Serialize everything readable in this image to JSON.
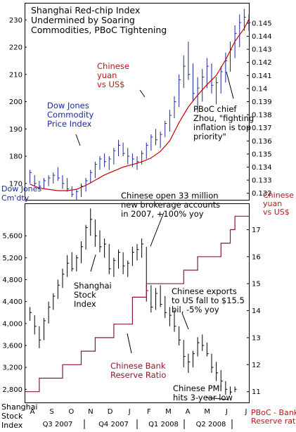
{
  "chart_data": [
    {
      "type": "line",
      "title": "Shanghai Red-chip Index\nUndermined by Soaring\nCommodities, PBoC Tightening",
      "x_labels": [
        "A",
        "S",
        "O",
        "N",
        "D",
        "J",
        "F",
        "M",
        "A",
        "M",
        "J",
        "J"
      ],
      "left_axis": {
        "ticks": [
          "170",
          "180",
          "190",
          "200",
          "210",
          "220",
          "230"
        ],
        "ylim": [
          164,
          236
        ],
        "label": "Dow Jones\nCm'dty"
      },
      "right_axis": {
        "ticks": [
          "0.132",
          "0.133",
          "0.134",
          "0.135",
          "0.136",
          "0.137",
          "0.138",
          "0.139",
          "0.14",
          "0.141",
          "0.142",
          "0.143",
          "0.144",
          "0.145"
        ],
        "ylim": [
          0.1315,
          0.1465
        ],
        "label": "Chinese\nyuan\nvs US$"
      },
      "series": [
        {
          "name": "Dow Jones Commodity Price Index",
          "style": "ohlc",
          "color": "#1a2a99",
          "bars": [
            [
              1,
              175,
              170,
              174
            ],
            [
              2,
              173,
              169,
              170
            ],
            [
              3,
              171,
              168,
              169
            ],
            [
              4,
              172,
              168,
              171
            ],
            [
              5,
              173,
              169,
              172
            ],
            [
              6,
              174,
              170,
              173
            ],
            [
              7,
              176,
              171,
              172
            ],
            [
              8,
              173,
              168,
              170
            ],
            [
              9,
              172,
              167,
              168
            ],
            [
              10,
              169,
              165,
              166
            ],
            [
              11,
              168,
              164,
              167
            ],
            [
              12,
              170,
              165,
              169
            ],
            [
              13,
              172,
              167,
              171
            ],
            [
              14,
              175,
              170,
              174
            ],
            [
              15,
              178,
              172,
              177
            ],
            [
              16,
              180,
              175,
              179
            ],
            [
              17,
              181,
              176,
              178
            ],
            [
              18,
              180,
              175,
              179
            ],
            [
              19,
              183,
              177,
              182
            ],
            [
              20,
              186,
              180,
              184
            ],
            [
              21,
              185,
              180,
              181
            ],
            [
              22,
              183,
              177,
              180
            ],
            [
              23,
              181,
              176,
              179
            ],
            [
              24,
              180,
              175,
              178
            ],
            [
              25,
              182,
              177,
              181
            ],
            [
              26,
              185,
              179,
              184
            ],
            [
              27,
              188,
              182,
              187
            ],
            [
              28,
              190,
              184,
              186
            ],
            [
              29,
              189,
              183,
              188
            ],
            [
              30,
              193,
              187,
              192
            ],
            [
              31,
              197,
              189,
              195
            ],
            [
              32,
              202,
              194,
              200
            ],
            [
              33,
              210,
              198,
              208
            ],
            [
              34,
              217,
              205,
              213
            ],
            [
              35,
              222,
              208,
              210
            ],
            [
              36,
              214,
              200,
              203
            ],
            [
              37,
              209,
              196,
              205
            ],
            [
              38,
              212,
              200,
              209
            ],
            [
              39,
              216,
              205,
              213
            ],
            [
              40,
              214,
              203,
              206
            ],
            [
              41,
              209,
              199,
              207
            ],
            [
              42,
              213,
              203,
              211
            ],
            [
              43,
              218,
              207,
              215
            ],
            [
              44,
              222,
              211,
              219
            ],
            [
              45,
              228,
              216,
              225
            ],
            [
              46,
              232,
              220,
              229
            ],
            [
              47,
              234,
              226,
              231
            ],
            [
              48,
              232,
              226,
              229
            ]
          ]
        },
        {
          "name": "Chinese yuan vs US$",
          "style": "line",
          "color": "#cc0000",
          "values": [
            [
              1,
              0.1327
            ],
            [
              3,
              0.1324
            ],
            [
              5,
              0.1323
            ],
            [
              7,
              0.1322
            ],
            [
              9,
              0.1322
            ],
            [
              11,
              0.1323
            ],
            [
              13,
              0.1326
            ],
            [
              15,
              0.133
            ],
            [
              17,
              0.1334
            ],
            [
              19,
              0.1337
            ],
            [
              21,
              0.134
            ],
            [
              23,
              0.1342
            ],
            [
              25,
              0.1344
            ],
            [
              27,
              0.1347
            ],
            [
              29,
              0.1352
            ],
            [
              31,
              0.136
            ],
            [
              33,
              0.1374
            ],
            [
              35,
              0.1386
            ],
            [
              37,
              0.1395
            ],
            [
              39,
              0.1403
            ],
            [
              41,
              0.141
            ],
            [
              43,
              0.1422
            ],
            [
              45,
              0.1436
            ],
            [
              47,
              0.1446
            ],
            [
              48,
              0.1453
            ]
          ]
        }
      ],
      "annotations": [
        {
          "text": "Chinese\nyuan\nvs US$",
          "color": "#b01a1a"
        },
        {
          "text": "Dow Jones\nCommodity\nPrice Index",
          "color": "#1a2a99"
        },
        {
          "text": "PBoC chief\nZhou, \"fighting\ninflation is top\npriority\"",
          "color": "#000000"
        }
      ]
    },
    {
      "type": "line",
      "x_labels": [
        "A",
        "S",
        "O",
        "N",
        "D",
        "J",
        "F",
        "M",
        "A",
        "M",
        "J",
        "J"
      ],
      "period_labels": [
        "Q3 2007",
        "Q4 2007",
        "Q1 2008",
        "Q2 2008"
      ],
      "left_axis": {
        "ticks": [
          "2,800",
          "3,200",
          "3,600",
          "4,000",
          "4,400",
          "4,800",
          "5,200",
          "5,600"
        ],
        "ylim": [
          2560,
          6180
        ],
        "label": "Shanghai\nStock\nIndex"
      },
      "right_axis": {
        "ticks": [
          "11",
          "12",
          "13",
          "14",
          "15",
          "16",
          "17"
        ],
        "ylim": [
          10.6,
          17.95
        ],
        "label": "PBoC - Bank\nReserve ratio"
      },
      "series": [
        {
          "name": "Shanghai Stock Index",
          "style": "ohlc",
          "color": "#000000",
          "bars": [
            [
              1,
              4300,
              4050,
              4200
            ],
            [
              2,
              4150,
              3800,
              3950
            ],
            [
              3,
              3950,
              3550,
              3700
            ],
            [
              4,
              4100,
              3700,
              4050
            ],
            [
              5,
              4400,
              4000,
              4300
            ],
            [
              6,
              4550,
              4250,
              4500
            ],
            [
              7,
              4800,
              4450,
              4700
            ],
            [
              8,
              5000,
              4650,
              4900
            ],
            [
              9,
              5250,
              4850,
              5100
            ],
            [
              10,
              5300,
              4950,
              5000
            ],
            [
              11,
              5250,
              4950,
              5200
            ],
            [
              12,
              5500,
              5100,
              5400
            ],
            [
              13,
              5800,
              5350,
              5750
            ],
            [
              14,
              6100,
              5600,
              5900
            ],
            [
              15,
              5900,
              5400,
              5600
            ],
            [
              16,
              5700,
              5300,
              5400
            ],
            [
              17,
              5550,
              5200,
              5450
            ],
            [
              18,
              5450,
              4900,
              5000
            ],
            [
              19,
              5200,
              4850,
              5150
            ],
            [
              20,
              5350,
              5000,
              5300
            ],
            [
              21,
              5300,
              4900,
              5050
            ],
            [
              22,
              5150,
              4850,
              5100
            ],
            [
              23,
              5400,
              5050,
              5300
            ],
            [
              24,
              5450,
              5150,
              5350
            ],
            [
              25,
              5550,
              5200,
              5450
            ],
            [
              26,
              5400,
              4400,
              4600
            ],
            [
              27,
              4700,
              4200,
              4300
            ],
            [
              28,
              4650,
              4250,
              4550
            ],
            [
              29,
              4700,
              4300,
              4350
            ],
            [
              30,
              4500,
              4100,
              4200
            ],
            [
              31,
              4300,
              3950,
              4150
            ],
            [
              32,
              4250,
              3850,
              3950
            ],
            [
              33,
              3950,
              3600,
              3700
            ],
            [
              34,
              3700,
              3200,
              3400
            ],
            [
              35,
              3450,
              3100,
              3300
            ],
            [
              36,
              3500,
              3200,
              3450
            ],
            [
              37,
              3750,
              3400,
              3650
            ],
            [
              38,
              3800,
              3500,
              3600
            ],
            [
              39,
              3650,
              3400,
              3450
            ],
            [
              40,
              3450,
              3100,
              3200
            ],
            [
              41,
              3300,
              2950,
              3100
            ],
            [
              42,
              3150,
              2850,
              2950
            ],
            [
              43,
              2950,
              2700,
              2800
            ],
            [
              44,
              2850,
              2700,
              2750
            ],
            [
              45,
              2850,
              2750,
              2800
            ]
          ]
        },
        {
          "name": "Chinese Bank Reserve Ratio",
          "style": "step",
          "color": "#8b1a2a",
          "values": [
            [
              0,
              11.0
            ],
            [
              3,
              11.5
            ],
            [
              8,
              12.0
            ],
            [
              12,
              12.5
            ],
            [
              15,
              13.0
            ],
            [
              19,
              13.5
            ],
            [
              23,
              14.5
            ],
            [
              26,
              15.0
            ],
            [
              34,
              15.5
            ],
            [
              37,
              16.0
            ],
            [
              42,
              16.5
            ],
            [
              44,
              17.0
            ],
            [
              45,
              17.5
            ],
            [
              48,
              17.5
            ]
          ]
        }
      ],
      "annotations": [
        {
          "text": "Chinese open 33 million\nnew brokerage accounts\nin 2007, +100% yoy",
          "color": "#000000"
        },
        {
          "text": "Shanghai\nStock\nIndex",
          "color": "#000000"
        },
        {
          "text": "Chinese exports\nto US fall to $15.5\nbil, -5% yoy",
          "color": "#000000"
        },
        {
          "text": "Chinese Bank\nReserve Ratio",
          "color": "#8b1a2a"
        },
        {
          "text": "Chinese PMI\nhits 3-year low",
          "color": "#000000"
        }
      ],
      "right_top_label": "Chinese\nyuan\nvs US$"
    }
  ]
}
